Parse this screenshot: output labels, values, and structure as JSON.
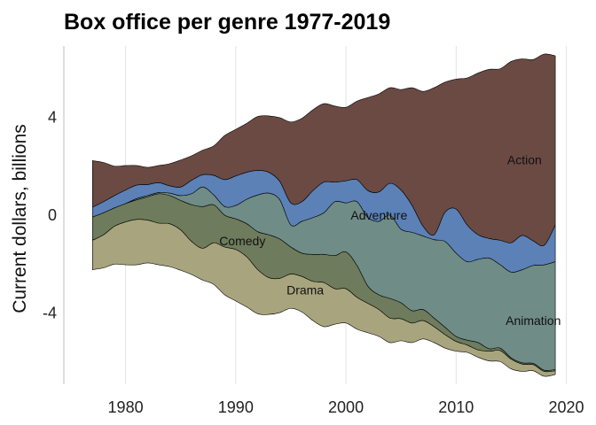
{
  "chart_data": {
    "type": "area",
    "title": "Box office per genre 1977-2019",
    "xlabel": "",
    "ylabel": "Current dollars, billions",
    "x": [
      1977,
      1978,
      1979,
      1980,
      1981,
      1982,
      1983,
      1984,
      1985,
      1986,
      1987,
      1988,
      1989,
      1990,
      1991,
      1992,
      1993,
      1994,
      1995,
      1996,
      1997,
      1998,
      1999,
      2000,
      2001,
      2002,
      2003,
      2004,
      2005,
      2006,
      2007,
      2008,
      2009,
      2010,
      2011,
      2012,
      2013,
      2014,
      2015,
      2016,
      2017,
      2018,
      2019
    ],
    "xticks": [
      1980,
      1990,
      2000,
      2010,
      2020
    ],
    "yticks": [
      -4,
      0,
      4
    ],
    "xlim": [
      1974.4,
      2020.6
    ],
    "ylim": [
      -6.9,
      6.9
    ],
    "grid": "vertical",
    "stack_baseline": "centered",
    "series": [
      {
        "name": "Drama",
        "color": "#a8a57e",
        "values": [
          1.2,
          1.35,
          1.55,
          1.75,
          1.85,
          1.75,
          1.7,
          1.75,
          1.65,
          1.35,
          1.3,
          1.7,
          1.95,
          2.1,
          2.05,
          1.8,
          1.5,
          1.4,
          1.4,
          1.45,
          1.6,
          1.8,
          1.45,
          1.4,
          1.3,
          1.2,
          1.1,
          1.0,
          0.9,
          0.8,
          0.75,
          0.65,
          0.55,
          0.4,
          0.3,
          0.3,
          0.4,
          0.45,
          0.4,
          0.3,
          0.25,
          0.2,
          0.15
        ]
      },
      {
        "name": "Comedy",
        "color": "#6e7b5c",
        "values": [
          0.95,
          0.9,
          0.75,
          0.75,
          0.8,
          0.95,
          1.2,
          1.15,
          1.2,
          1.5,
          1.7,
          1.55,
          1.3,
          1.25,
          1.35,
          1.55,
          1.75,
          1.6,
          1.1,
          0.95,
          1.1,
          1.15,
          1.35,
          1.5,
          1.3,
          0.7,
          0.6,
          0.8,
          0.65,
          0.5,
          0.45,
          0.35,
          0.3,
          0.2,
          0.2,
          0.3,
          0.1,
          0.1,
          0.05,
          0.05,
          0.05,
          0.05,
          0.05
        ]
      },
      {
        "name": "Animation",
        "color": "#6f8c87",
        "values": [
          0.0,
          0.0,
          0.0,
          0.0,
          0.05,
          0.05,
          0.05,
          0.1,
          0.2,
          0.45,
          0.8,
          0.4,
          0.35,
          0.55,
          1.0,
          1.5,
          1.7,
          1.6,
          0.9,
          1.3,
          1.5,
          1.7,
          2.2,
          2.0,
          2.6,
          2.8,
          3.0,
          3.4,
          3.0,
          3.2,
          3.0,
          3.2,
          3.5,
          3.4,
          3.2,
          3.4,
          3.7,
          3.4,
          3.5,
          3.8,
          4.0,
          4.3,
          4.4
        ]
      },
      {
        "name": "Adventure",
        "color": "#5b81b7",
        "values": [
          0.4,
          0.45,
          0.5,
          0.55,
          0.55,
          0.45,
          0.4,
          0.3,
          0.35,
          0.55,
          0.5,
          0.8,
          1.1,
          1.2,
          1.1,
          1.0,
          0.85,
          0.75,
          0.9,
          0.8,
          1.1,
          1.25,
          0.8,
          0.9,
          0.9,
          1.1,
          1.2,
          1.3,
          1.6,
          1.1,
          0.4,
          0.2,
          1.2,
          1.8,
          1.5,
          1.0,
          0.8,
          1.0,
          1.2,
          1.4,
          1.0,
          0.8,
          1.5
        ]
      },
      {
        "name": "Action",
        "color": "#6b4a44",
        "values": [
          1.9,
          1.6,
          1.2,
          1.0,
          0.8,
          0.7,
          0.7,
          0.9,
          1.1,
          1.0,
          1.0,
          1.2,
          1.8,
          1.9,
          2.0,
          2.2,
          2.3,
          2.6,
          3.3,
          3.4,
          3.3,
          3.2,
          3.1,
          3.0,
          3.2,
          3.8,
          4.0,
          3.9,
          4.1,
          4.8,
          5.5,
          6.0,
          5.3,
          5.3,
          6.0,
          6.6,
          6.9,
          7.0,
          7.4,
          7.2,
          7.4,
          7.8,
          6.9
        ]
      }
    ],
    "series_labels": [
      {
        "series": "Action",
        "x": 2016.2,
        "y": 2.25
      },
      {
        "series": "Adventure",
        "x": 2003.0,
        "y": 0.0
      },
      {
        "series": "Comedy",
        "x": 1990.6,
        "y": -1.05
      },
      {
        "series": "Drama",
        "x": 1996.3,
        "y": -3.05
      },
      {
        "series": "Animation",
        "x": 2017.0,
        "y": -4.3
      }
    ]
  }
}
